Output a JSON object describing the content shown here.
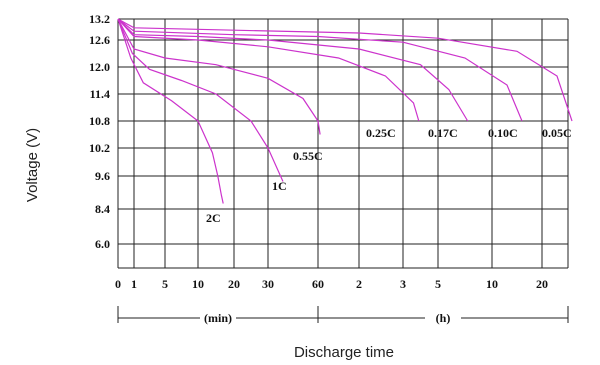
{
  "chart_data": {
    "type": "line",
    "title": "",
    "ylabel": "Voltage (V)",
    "xlabel": "Discharge time",
    "y_ticks": [
      "13.2",
      "12.6",
      "12.0",
      "11.4",
      "10.8",
      "10.2",
      "9.6",
      "8.4",
      "6.0"
    ],
    "x_ticks": [
      "0",
      "1",
      "5",
      "10",
      "20",
      "30",
      "60",
      "2",
      "3",
      "5",
      "10",
      "20"
    ],
    "x_units": [
      {
        "label": "(min)",
        "from": "0",
        "to": "60"
      },
      {
        "label": "(h)",
        "from": "60",
        "to": "20"
      }
    ],
    "grid": true,
    "series": [
      {
        "name": "2C",
        "x": [
          "0",
          "1",
          "5",
          "10",
          "20"
        ],
        "points": [
          [
            0,
            13.2
          ],
          [
            0.8,
            12.2
          ],
          [
            1.3,
            11.65
          ],
          [
            2.2,
            11.25
          ],
          [
            3.0,
            10.8
          ],
          [
            3.4,
            10.1
          ],
          [
            3.55,
            9.6
          ],
          [
            3.65,
            8.9
          ],
          [
            3.7,
            8.6
          ]
        ]
      },
      {
        "name": "1C",
        "points": [
          [
            0,
            13.2
          ],
          [
            0.9,
            12.3
          ],
          [
            1.5,
            11.95
          ],
          [
            2.5,
            11.7
          ],
          [
            3.5,
            11.4
          ],
          [
            4.5,
            10.8
          ],
          [
            5.0,
            10.2
          ],
          [
            5.25,
            9.6
          ],
          [
            5.3,
            9.4
          ]
        ]
      },
      {
        "name": "0.55C",
        "points": [
          [
            0,
            13.2
          ],
          [
            1.0,
            12.4
          ],
          [
            2.0,
            12.2
          ],
          [
            3.5,
            12.05
          ],
          [
            5.0,
            11.75
          ],
          [
            5.7,
            11.3
          ],
          [
            6.0,
            10.8
          ],
          [
            6.05,
            10.5
          ]
        ]
      },
      {
        "name": "0.25C",
        "points": [
          [
            0,
            13.2
          ],
          [
            1.0,
            12.7
          ],
          [
            3.0,
            12.6
          ],
          [
            5.0,
            12.45
          ],
          [
            6.5,
            12.2
          ],
          [
            7.6,
            11.8
          ],
          [
            8.3,
            11.2
          ],
          [
            8.45,
            10.8
          ]
        ]
      },
      {
        "name": "0.17C",
        "points": [
          [
            0,
            13.2
          ],
          [
            1.0,
            12.75
          ],
          [
            3.0,
            12.7
          ],
          [
            5.0,
            12.6
          ],
          [
            7.0,
            12.4
          ],
          [
            8.5,
            12.05
          ],
          [
            9.2,
            11.5
          ],
          [
            9.55,
            10.8
          ]
        ]
      },
      {
        "name": "0.10C",
        "points": [
          [
            0,
            13.2
          ],
          [
            1.0,
            12.85
          ],
          [
            4.0,
            12.75
          ],
          [
            6.0,
            12.7
          ],
          [
            8.0,
            12.55
          ],
          [
            9.5,
            12.2
          ],
          [
            10.3,
            11.6
          ],
          [
            10.6,
            10.8
          ]
        ]
      },
      {
        "name": "0.05C",
        "points": [
          [
            0,
            13.2
          ],
          [
            1.0,
            12.95
          ],
          [
            4.0,
            12.88
          ],
          [
            7.0,
            12.8
          ],
          [
            9.0,
            12.65
          ],
          [
            10.5,
            12.35
          ],
          [
            11.3,
            11.8
          ],
          [
            11.6,
            10.8
          ]
        ]
      }
    ]
  }
}
